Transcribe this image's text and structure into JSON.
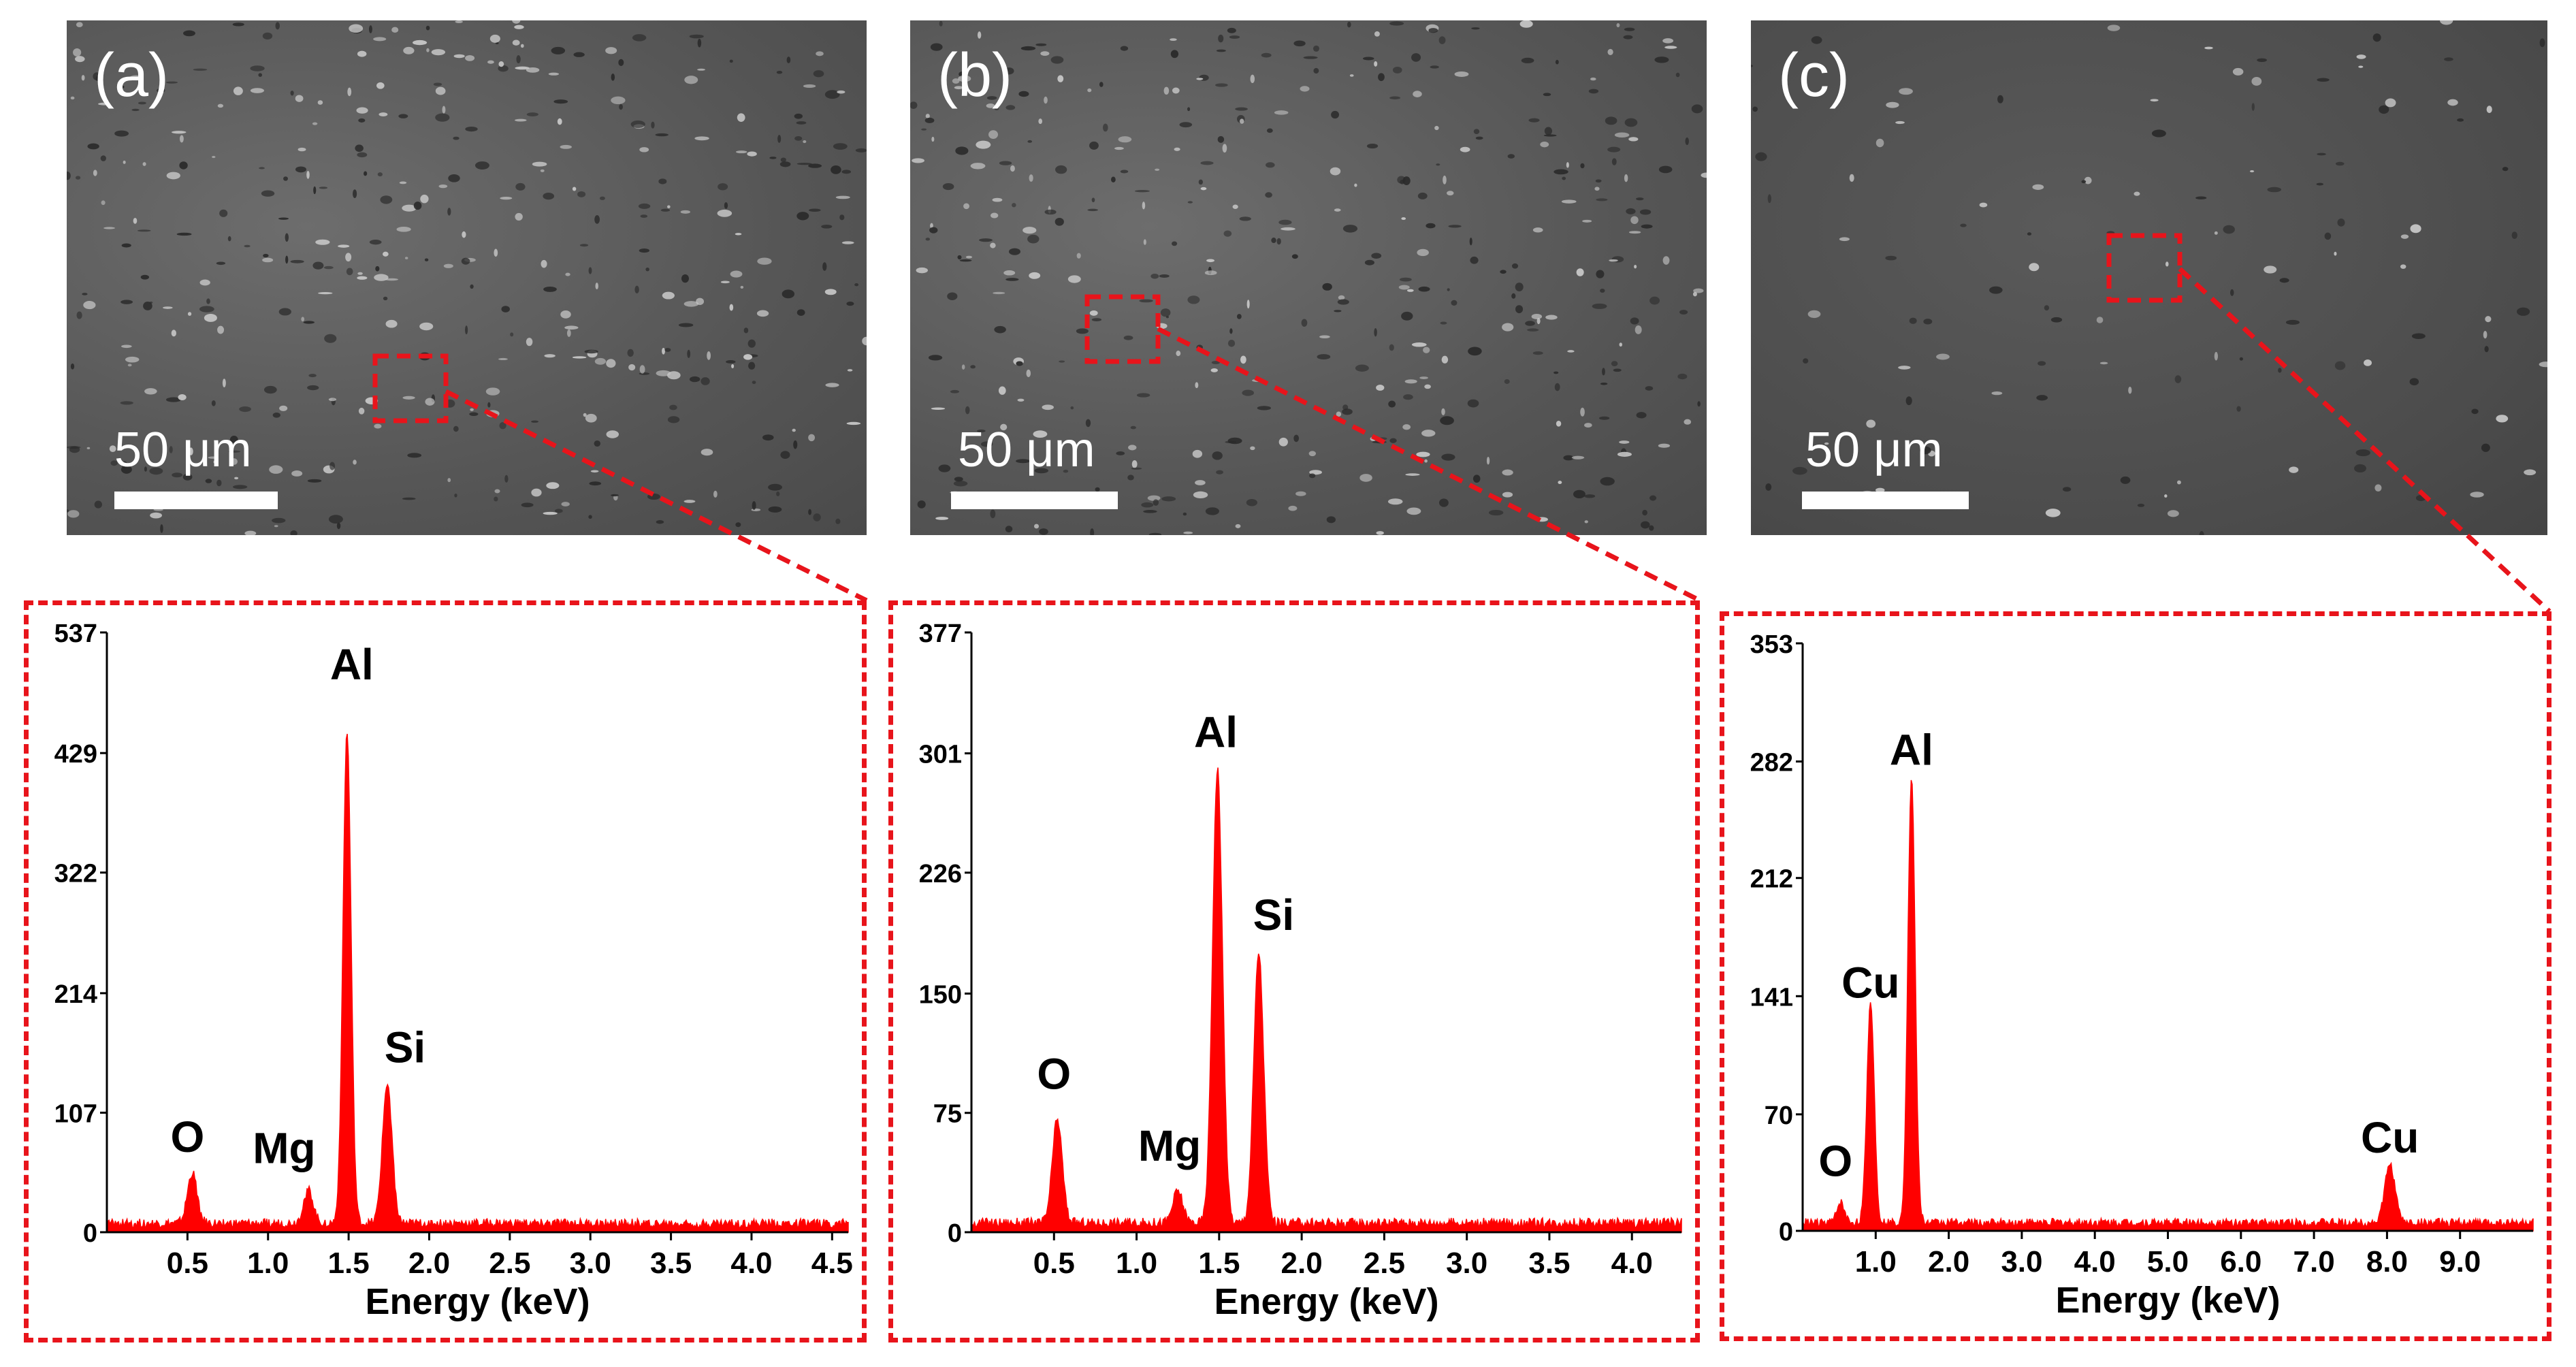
{
  "colors": {
    "accent": "#e8141b",
    "spectrum": "#ff0000",
    "axis": "#000000",
    "sem_spot": "#ffffff"
  },
  "panels": [
    {
      "label": "(a)",
      "scale_bar": "50 μm"
    },
    {
      "label": "(b)",
      "scale_bar": "50 μm"
    },
    {
      "label": "(c)",
      "scale_bar": "50 μm"
    }
  ],
  "chart_data": [
    {
      "type": "area",
      "title": "",
      "xlabel": "Energy (keV)",
      "ylabel": "",
      "xlim": [
        0,
        4.6
      ],
      "ylim": [
        0,
        537
      ],
      "y_ticks": [
        "537",
        "429",
        "322",
        "214",
        "107",
        "0"
      ],
      "y_tick_values": [
        537,
        429,
        322,
        214,
        107,
        0
      ],
      "x_ticks": [
        "0.5",
        "1.0",
        "1.5",
        "2.0",
        "2.5",
        "3.0",
        "3.5",
        "4.0",
        "4.5"
      ],
      "x_tick_values": [
        0.5,
        1.0,
        1.5,
        2.0,
        2.5,
        3.0,
        3.5,
        4.0,
        4.5
      ],
      "background_counts": 8,
      "peaks": [
        {
          "element": "O",
          "energy": 0.53,
          "counts": 45,
          "width": 0.03
        },
        {
          "element": "Mg",
          "energy": 1.25,
          "counts": 30,
          "width": 0.03
        },
        {
          "element": "Al",
          "energy": 1.49,
          "counts": 440,
          "width": 0.025
        },
        {
          "element": "Si",
          "energy": 1.74,
          "counts": 125,
          "width": 0.03
        }
      ],
      "annotations": [
        {
          "text": "O",
          "energy": 0.5,
          "counts": 72
        },
        {
          "text": "Mg",
          "energy": 1.1,
          "counts": 62
        },
        {
          "text": "Al",
          "energy": 1.52,
          "counts": 495
        },
        {
          "text": "Si",
          "energy": 1.85,
          "counts": 152
        }
      ]
    },
    {
      "type": "area",
      "title": "",
      "xlabel": "Energy (keV)",
      "ylabel": "",
      "xlim": [
        0,
        4.3
      ],
      "ylim": [
        0,
        377
      ],
      "y_ticks": [
        "377",
        "301",
        "226",
        "150",
        "75",
        "0"
      ],
      "y_tick_values": [
        377,
        301,
        226,
        150,
        75,
        0
      ],
      "x_ticks": [
        "0.5",
        "1.0",
        "1.5",
        "2.0",
        "2.5",
        "3.0",
        "3.5",
        "4.0"
      ],
      "x_tick_values": [
        0.5,
        1.0,
        1.5,
        2.0,
        2.5,
        3.0,
        3.5,
        4.0
      ],
      "background_counts": 6,
      "peaks": [
        {
          "element": "O",
          "energy": 0.52,
          "counts": 65,
          "width": 0.03
        },
        {
          "element": "Mg",
          "energy": 1.25,
          "counts": 20,
          "width": 0.03
        },
        {
          "element": "Al",
          "energy": 1.49,
          "counts": 285,
          "width": 0.03
        },
        {
          "element": "Si",
          "energy": 1.74,
          "counts": 170,
          "width": 0.03
        }
      ],
      "annotations": [
        {
          "text": "O",
          "energy": 0.5,
          "counts": 90
        },
        {
          "text": "Mg",
          "energy": 1.2,
          "counts": 45
        },
        {
          "text": "Al",
          "energy": 1.48,
          "counts": 305
        },
        {
          "text": "Si",
          "energy": 1.83,
          "counts": 190
        }
      ]
    },
    {
      "type": "area",
      "title": "",
      "xlabel": "Energy (keV)",
      "ylabel": "",
      "xlim": [
        0,
        10.0
      ],
      "ylim": [
        0,
        353
      ],
      "y_ticks": [
        "353",
        "282",
        "212",
        "141",
        "70",
        "0"
      ],
      "y_tick_values": [
        353,
        282,
        212,
        141,
        70,
        0
      ],
      "x_ticks": [
        "1.0",
        "2.0",
        "3.0",
        "4.0",
        "5.0",
        "6.0",
        "7.0",
        "8.0",
        "9.0"
      ],
      "x_tick_values": [
        1.0,
        2.0,
        3.0,
        4.0,
        5.0,
        6.0,
        7.0,
        8.0,
        9.0
      ],
      "background_counts": 5,
      "peaks": [
        {
          "element": "O",
          "energy": 0.52,
          "counts": 12,
          "width": 0.05
        },
        {
          "element": "Cu",
          "energy": 0.93,
          "counts": 133,
          "width": 0.05
        },
        {
          "element": "Al",
          "energy": 1.49,
          "counts": 268,
          "width": 0.05
        },
        {
          "element": "Cu",
          "energy": 8.04,
          "counts": 35,
          "width": 0.07
        }
      ],
      "annotations": [
        {
          "text": "O",
          "energy": 0.45,
          "counts": 33
        },
        {
          "text": "Cu",
          "energy": 0.93,
          "counts": 140
        },
        {
          "text": "Al",
          "energy": 1.49,
          "counts": 280
        },
        {
          "text": "Cu",
          "energy": 8.04,
          "counts": 47
        }
      ]
    }
  ]
}
